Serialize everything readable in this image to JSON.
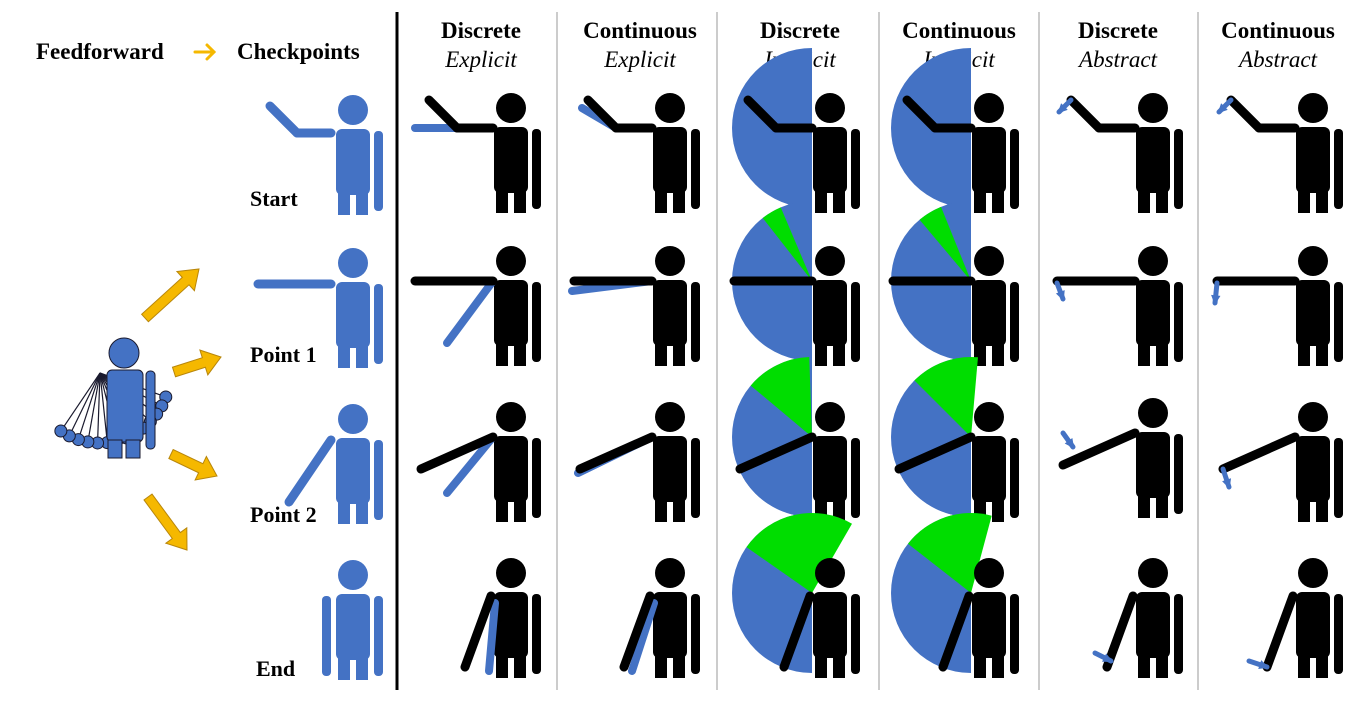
{
  "header": {
    "feedforward_label": "Feedforward",
    "checkpoints_label": "Checkpoints"
  },
  "rows": [
    {
      "key": "start",
      "label": "Start"
    },
    {
      "key": "p1",
      "label": "Point 1"
    },
    {
      "key": "p2",
      "label": "Point 2"
    },
    {
      "key": "end",
      "label": "End"
    }
  ],
  "columns": [
    {
      "title": "Discrete",
      "subtitle": "Explicit",
      "mode": "explicit",
      "timing": "discrete"
    },
    {
      "title": "Continuous",
      "subtitle": "Explicit",
      "mode": "explicit",
      "timing": "continuous"
    },
    {
      "title": "Discrete",
      "subtitle": "Implicit",
      "mode": "implicit",
      "timing": "discrete"
    },
    {
      "title": "Continuous",
      "subtitle": "Implicit",
      "mode": "implicit",
      "timing": "continuous"
    },
    {
      "title": "Discrete",
      "subtitle": "Abstract",
      "mode": "abstract",
      "timing": "discrete"
    },
    {
      "title": "Continuous",
      "subtitle": "Abstract",
      "mode": "abstract",
      "timing": "continuous"
    }
  ],
  "colors": {
    "blue": "#4472c4",
    "black": "#000000",
    "green": "#00dd00",
    "arrow_orange": "#f5b800",
    "divider_gray": "#999999"
  }
}
